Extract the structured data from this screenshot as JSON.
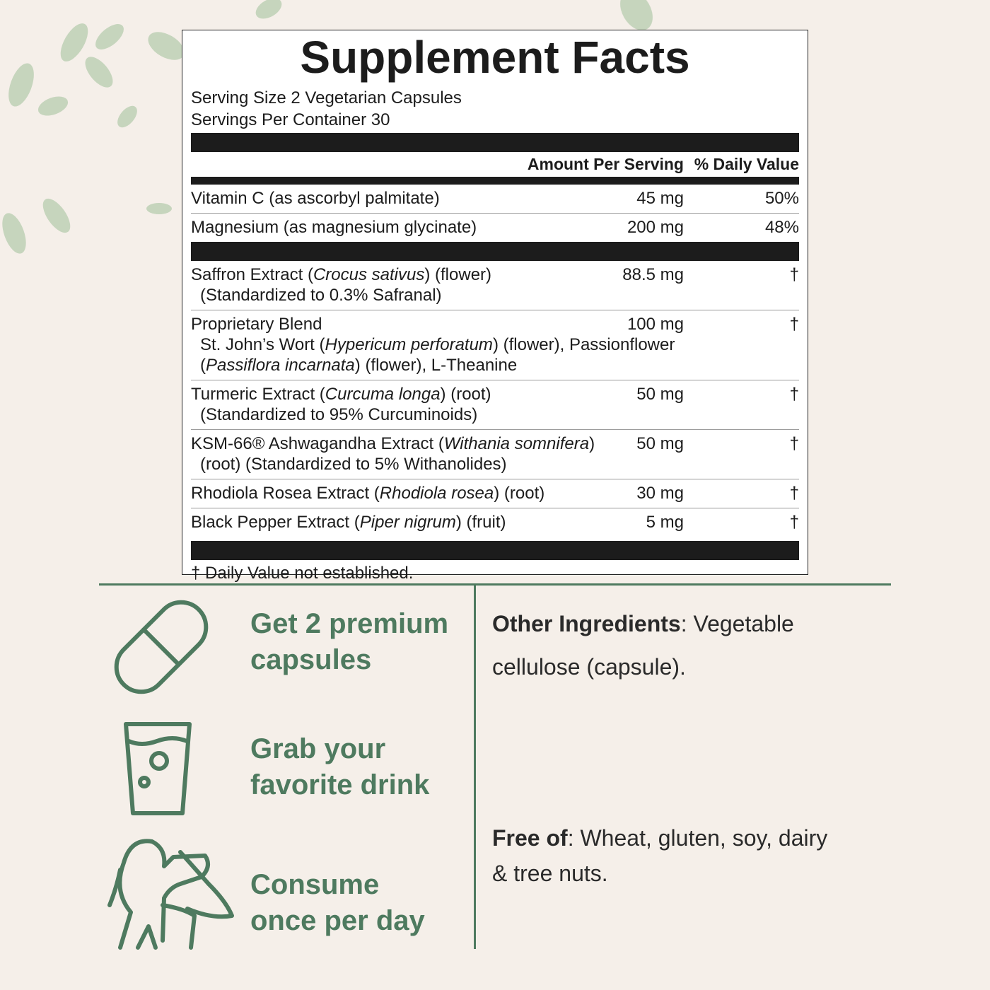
{
  "header": {
    "title": "Supplement Facts",
    "serving_size": "Serving Size 2 Vegetarian Capsules",
    "servings_per_container": "Servings Per Container 30"
  },
  "table": {
    "columns": [
      "Amount Per Serving",
      "% Daily Value"
    ],
    "groups": [
      [
        {
          "name": [
            [
              "Vitamin C (as ascorbyl palmitate)"
            ]
          ],
          "amount": "45 mg",
          "dv": "50%"
        },
        {
          "name": [
            [
              "Magnesium (as magnesium glycinate)"
            ]
          ],
          "amount": "200 mg",
          "dv": "48%"
        }
      ],
      [
        {
          "name": [
            [
              "Saffron Extract (",
              {
                "italic": "Crocus sativus"
              },
              ") (flower)"
            ],
            [
              "(Standardized to 0.3% Safranal)"
            ]
          ],
          "amount": "88.5 mg",
          "dv": "†"
        },
        {
          "name": [
            [
              "Proprietary Blend"
            ],
            [
              "St. John’s Wort (",
              {
                "italic": "Hypericum perforatum"
              },
              ") (flower), Passionflower"
            ],
            [
              "(",
              {
                "italic": "Passiflora incarnata"
              },
              ") (flower), L-Theanine"
            ]
          ],
          "amount": "100 mg",
          "dv": "†"
        },
        {
          "name": [
            [
              "Turmeric Extract (",
              {
                "italic": "Curcuma longa"
              },
              ") (root)"
            ],
            [
              "(Standardized to 95% Curcuminoids)"
            ]
          ],
          "amount": "50 mg",
          "dv": "†"
        },
        {
          "name": [
            [
              "KSM-66® Ashwagandha Extract (",
              {
                "italic": "Withania somnifera"
              },
              ")"
            ],
            [
              "(root) (Standardized to 5% Withanolides)"
            ]
          ],
          "amount": "50 mg",
          "dv": "†"
        },
        {
          "name": [
            [
              "Rhodiola Rosea Extract (",
              {
                "italic": "Rhodiola rosea"
              },
              ") (root)"
            ]
          ],
          "amount": "30 mg",
          "dv": "†"
        },
        {
          "name": [
            [
              "Black Pepper Extract (",
              {
                "italic": "Piper nigrum"
              },
              ") (fruit)"
            ]
          ],
          "amount": "5 mg",
          "dv": "†"
        }
      ]
    ],
    "footnote": "† Daily Value not established."
  },
  "steps": [
    {
      "lines": [
        "Get 2 premium",
        "capsules"
      ]
    },
    {
      "lines": [
        "Grab your",
        "favorite drink"
      ]
    },
    {
      "lines": [
        "Consume",
        "once per day"
      ]
    }
  ],
  "info": [
    {
      "lines": [
        [
          {
            "bold": "Other Ingredients"
          },
          ": Vegetable"
        ],
        [
          "cellulose (capsule)."
        ]
      ]
    },
    {
      "lines": [
        [
          {
            "bold": "Free of"
          },
          ": Wheat, gluten, soy, dairy"
        ],
        [
          "& tree nuts."
        ]
      ]
    }
  ]
}
